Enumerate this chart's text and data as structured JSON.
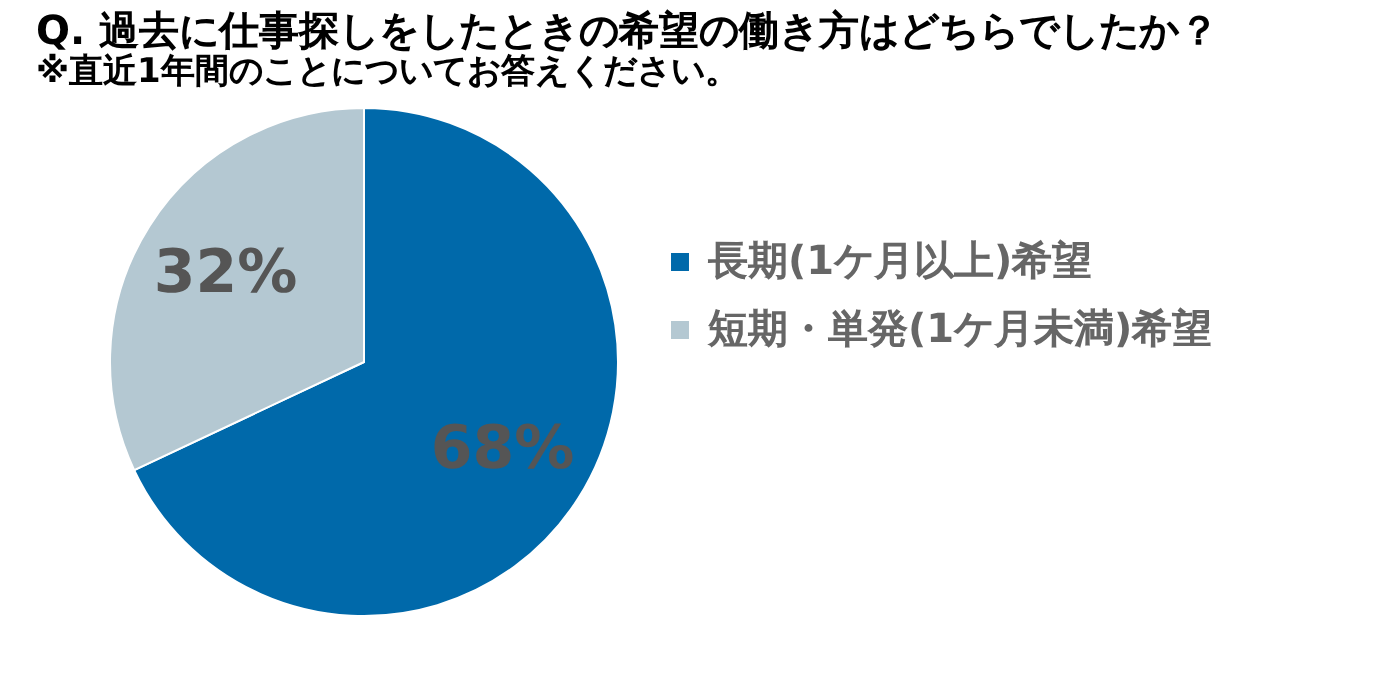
{
  "chart_data": {
    "type": "pie",
    "title": "Q. 過去に仕事探しをしたときの希望の働き方はどちらでしたか？",
    "subtitle": "※直近1年間のことについてお答えください。",
    "categories": [
      "長期(1ケ月以上)希望",
      "短期・単発(1ケ月未満)希望"
    ],
    "values": [
      68,
      32
    ],
    "value_labels": [
      "68%",
      "32%"
    ],
    "colors": [
      "#0069aa",
      "#b4c8d2"
    ],
    "legend": "right"
  }
}
